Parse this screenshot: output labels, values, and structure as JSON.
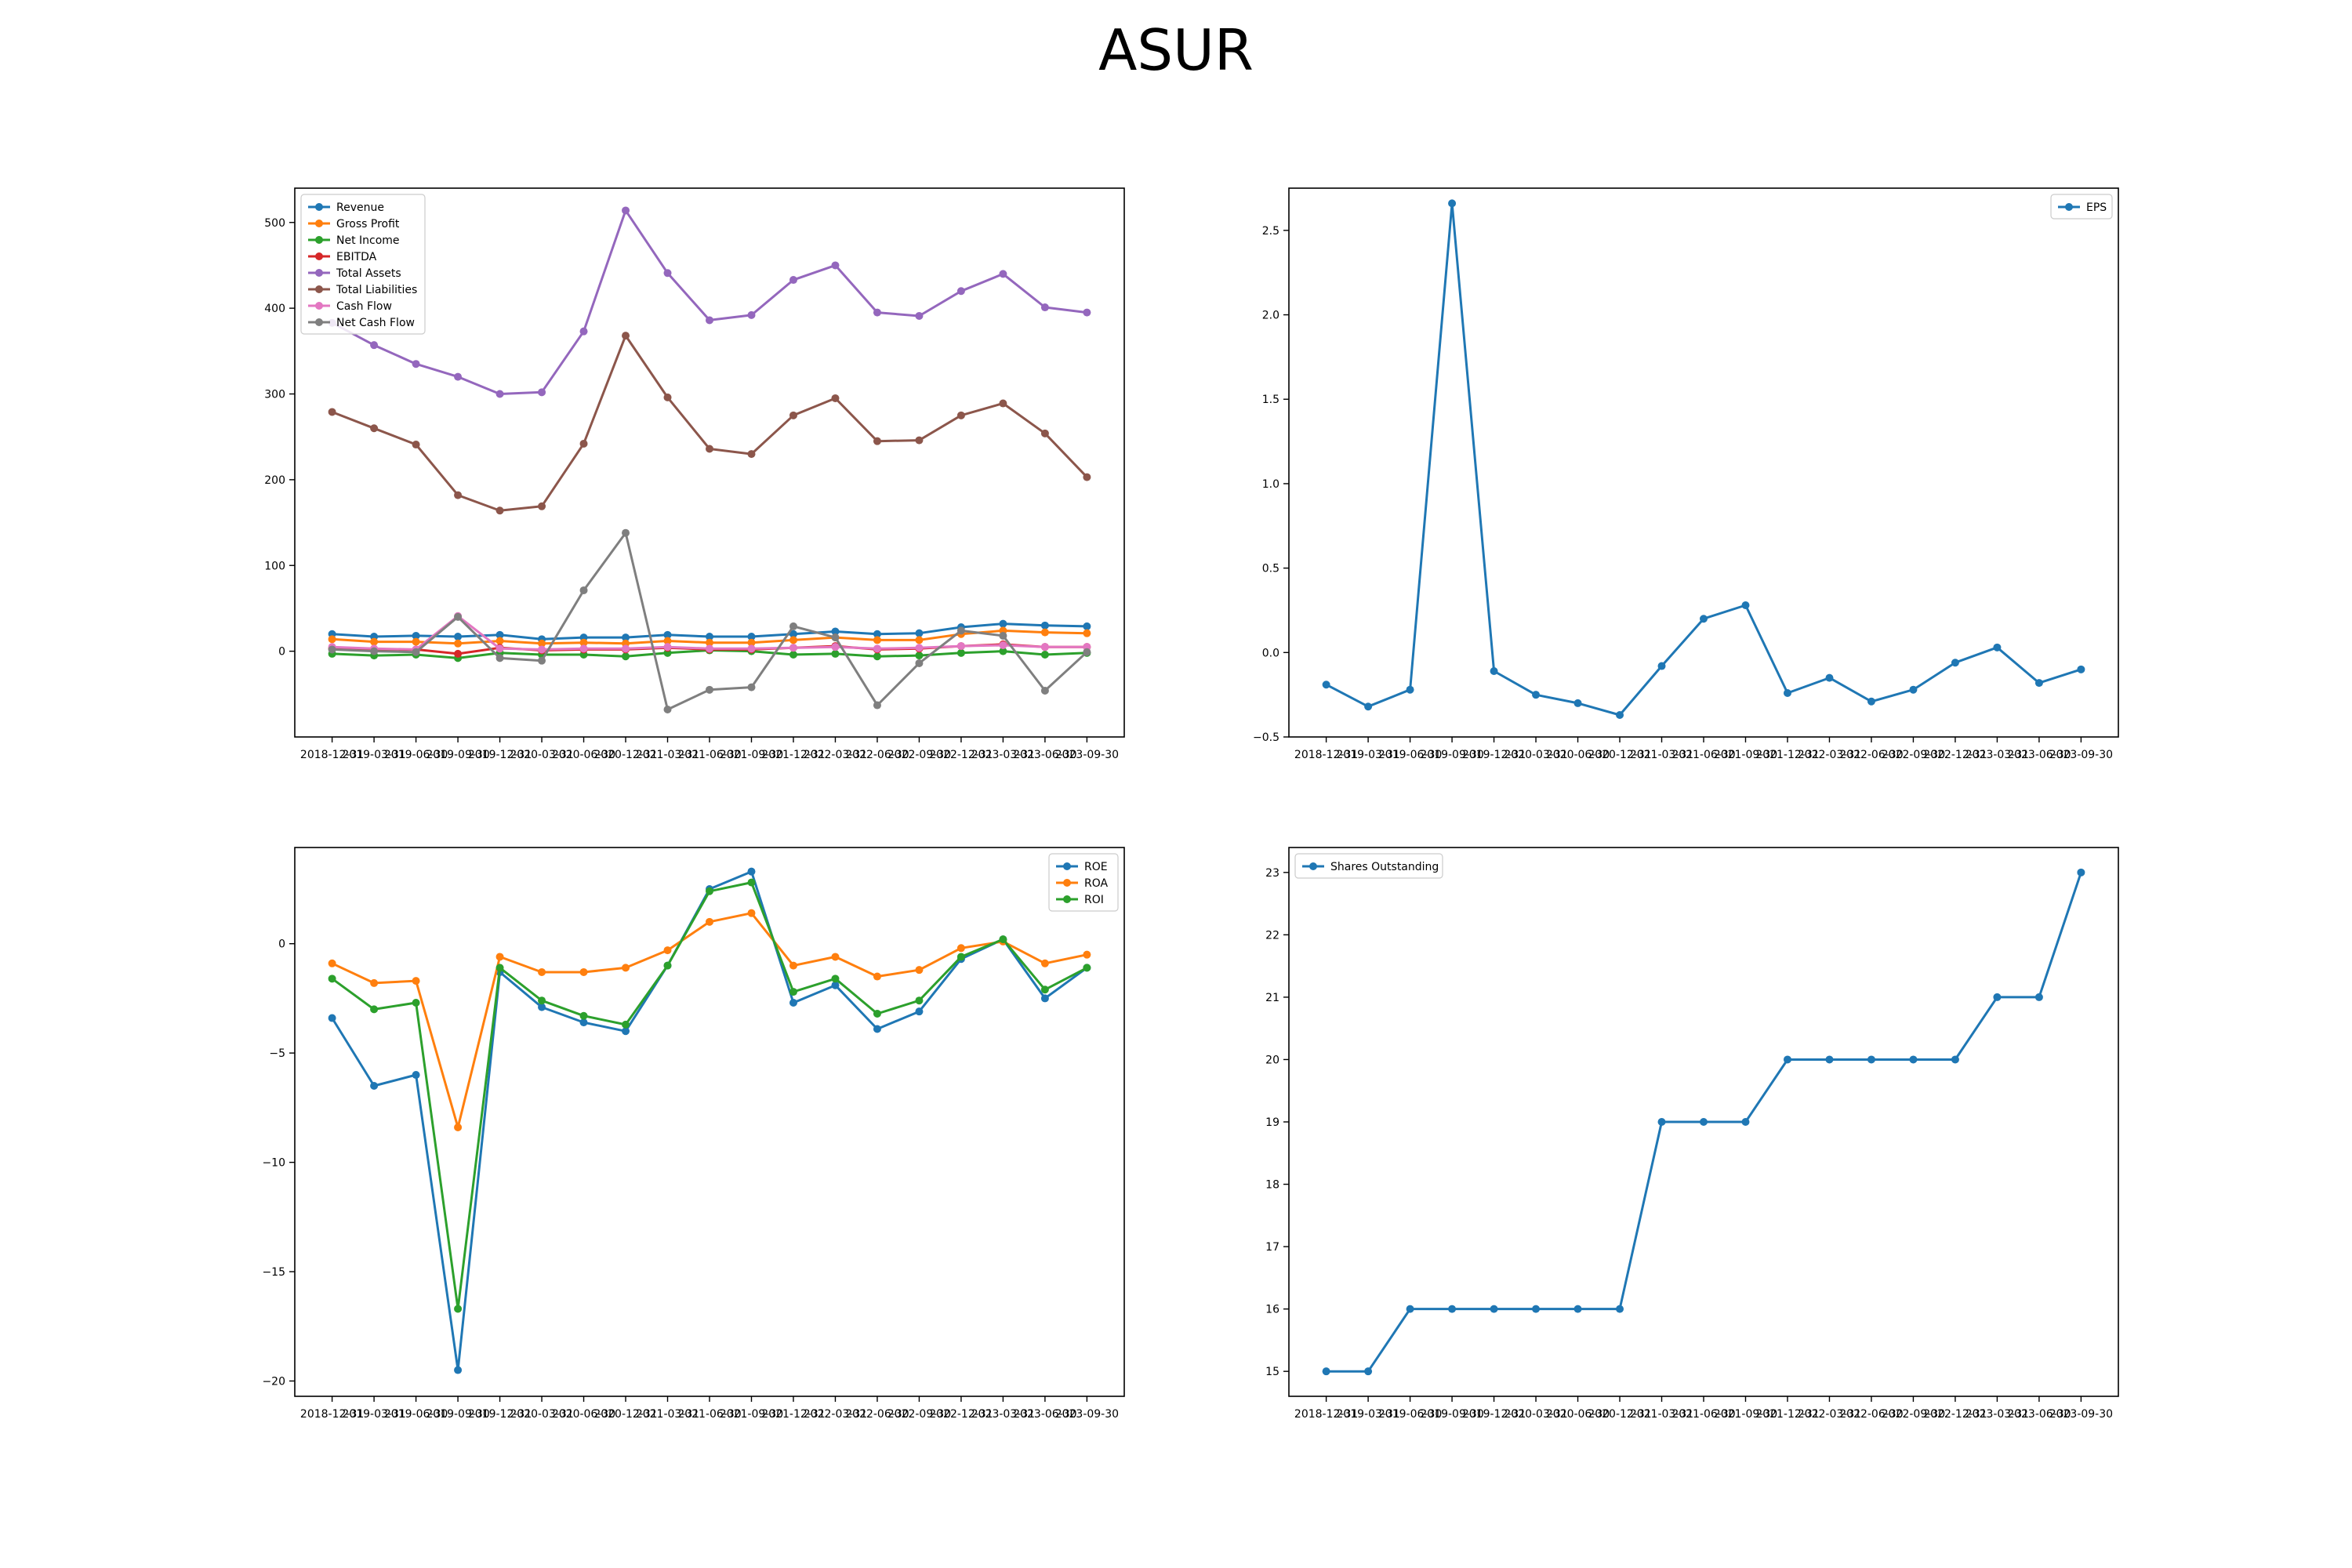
{
  "title": "ASUR",
  "chart_data": [
    {
      "type": "line",
      "legend_position": "upper-left",
      "x": [
        "2018-12-31",
        "2019-03-31",
        "2019-06-30",
        "2019-09-30",
        "2019-12-31",
        "2020-03-31",
        "2020-06-30",
        "2020-12-31",
        "2021-03-31",
        "2021-06-30",
        "2021-09-30",
        "2021-12-31",
        "2022-03-31",
        "2022-06-30",
        "2022-09-30",
        "2022-12-31",
        "2023-03-31",
        "2023-06-30",
        "2023-09-30"
      ],
      "ylim": [
        -100,
        540
      ],
      "yticks": [
        0,
        100,
        200,
        300,
        400,
        500
      ],
      "series": [
        {
          "name": "Revenue",
          "color": "#1f77b4",
          "values": [
            20,
            17,
            18,
            17,
            19,
            14,
            16,
            16,
            19,
            17,
            17,
            20,
            23,
            20,
            21,
            28,
            32,
            30,
            29
          ]
        },
        {
          "name": "Gross Profit",
          "color": "#ff7f0e",
          "values": [
            14,
            11,
            11,
            9,
            12,
            9,
            10,
            9,
            12,
            10,
            10,
            13,
            16,
            13,
            13,
            20,
            24,
            22,
            21
          ]
        },
        {
          "name": "Net Income",
          "color": "#2ca02c",
          "values": [
            -3,
            -5,
            -4,
            -8,
            -2,
            -4,
            -4,
            -6,
            -2,
            1,
            0,
            -4,
            -3,
            -6,
            -5,
            -2,
            0,
            -4,
            -2
          ]
        },
        {
          "name": "EBITDA",
          "color": "#d62728",
          "values": [
            3,
            1,
            2,
            -3,
            4,
            1,
            2,
            2,
            4,
            2,
            2,
            4,
            6,
            2,
            3,
            6,
            8,
            5,
            5
          ]
        },
        {
          "name": "Total Assets",
          "color": "#9467bd",
          "values": [
            383,
            357,
            335,
            320,
            300,
            302,
            373,
            514,
            441,
            386,
            392,
            433,
            450,
            395,
            391,
            420,
            440,
            401,
            395
          ]
        },
        {
          "name": "Total Liabilities",
          "color": "#8c564b",
          "values": [
            279,
            260,
            241,
            182,
            164,
            169,
            242,
            368,
            296,
            236,
            230,
            275,
            295,
            245,
            246,
            275,
            289,
            254,
            203
          ]
        },
        {
          "name": "Cash Flow",
          "color": "#e377c2",
          "values": [
            5,
            3,
            2,
            41,
            3,
            2,
            3,
            3,
            5,
            3,
            3,
            4,
            5,
            3,
            4,
            6,
            7,
            5,
            5
          ]
        },
        {
          "name": "Net Cash Flow",
          "color": "#7f7f7f",
          "values": [
            2,
            0,
            -1,
            40,
            -8,
            -11,
            71,
            138,
            -68,
            -45,
            -42,
            29,
            16,
            -63,
            -14,
            24,
            18,
            -46,
            -1
          ]
        }
      ]
    },
    {
      "type": "line",
      "legend_position": "upper-right",
      "x": [
        "2018-12-31",
        "2019-03-31",
        "2019-06-30",
        "2019-09-30",
        "2019-12-31",
        "2020-03-31",
        "2020-06-30",
        "2020-12-31",
        "2021-03-31",
        "2021-06-30",
        "2021-09-30",
        "2021-12-31",
        "2022-03-31",
        "2022-06-30",
        "2022-09-30",
        "2022-12-31",
        "2023-03-31",
        "2023-06-30",
        "2023-09-30"
      ],
      "ylim": [
        -0.5,
        2.75
      ],
      "yticks": [
        -0.5,
        0.0,
        0.5,
        1.0,
        1.5,
        2.0,
        2.5
      ],
      "series": [
        {
          "name": "EPS",
          "color": "#1f77b4",
          "values": [
            -0.19,
            -0.32,
            -0.22,
            2.66,
            -0.11,
            -0.25,
            -0.3,
            -0.37,
            -0.08,
            0.2,
            0.28,
            -0.24,
            -0.15,
            -0.29,
            -0.22,
            -0.06,
            0.03,
            -0.18,
            -0.1
          ]
        }
      ]
    },
    {
      "type": "line",
      "legend_position": "upper-right",
      "x": [
        "2018-12-31",
        "2019-03-31",
        "2019-06-30",
        "2019-09-30",
        "2019-12-31",
        "2020-03-31",
        "2020-06-30",
        "2020-12-31",
        "2021-03-31",
        "2021-06-30",
        "2021-09-30",
        "2021-12-31",
        "2022-03-31",
        "2022-06-30",
        "2022-09-30",
        "2022-12-31",
        "2023-03-31",
        "2023-06-30",
        "2023-09-30"
      ],
      "ylim": [
        -20.7,
        4.4
      ],
      "yticks": [
        -20,
        -15,
        -10,
        -5,
        0
      ],
      "series": [
        {
          "name": "ROE",
          "color": "#1f77b4",
          "values": [
            -3.4,
            -6.5,
            -6.0,
            -19.5,
            -1.3,
            -2.9,
            -3.6,
            -4.0,
            -1.0,
            2.5,
            3.3,
            -2.7,
            -1.9,
            -3.9,
            -3.1,
            -0.7,
            0.2,
            -2.5,
            -1.1
          ]
        },
        {
          "name": "ROA",
          "color": "#ff7f0e",
          "values": [
            -0.9,
            -1.8,
            -1.7,
            -8.4,
            -0.6,
            -1.3,
            -1.3,
            -1.1,
            -0.3,
            1.0,
            1.4,
            -1.0,
            -0.6,
            -1.5,
            -1.2,
            -0.2,
            0.1,
            -0.9,
            -0.5
          ]
        },
        {
          "name": "ROI",
          "color": "#2ca02c",
          "values": [
            -1.6,
            -3.0,
            -2.7,
            -16.7,
            -1.1,
            -2.6,
            -3.3,
            -3.7,
            -1.0,
            2.4,
            2.8,
            -2.2,
            -1.6,
            -3.2,
            -2.6,
            -0.6,
            0.2,
            -2.1,
            -1.1
          ]
        }
      ]
    },
    {
      "type": "line",
      "legend_position": "upper-left",
      "x": [
        "2018-12-31",
        "2019-03-31",
        "2019-06-30",
        "2019-09-30",
        "2019-12-31",
        "2020-03-31",
        "2020-06-30",
        "2020-12-31",
        "2021-03-31",
        "2021-06-30",
        "2021-09-30",
        "2021-12-31",
        "2022-03-31",
        "2022-06-30",
        "2022-09-30",
        "2022-12-31",
        "2023-03-31",
        "2023-06-30",
        "2023-09-30"
      ],
      "ylim": [
        14.6,
        23.4
      ],
      "yticks": [
        15,
        16,
        17,
        18,
        19,
        20,
        21,
        22,
        23
      ],
      "series": [
        {
          "name": "Shares Outstanding",
          "color": "#1f77b4",
          "values": [
            15,
            15,
            16,
            16,
            16,
            16,
            16,
            16,
            19,
            19,
            19,
            20,
            20,
            20,
            20,
            20,
            21,
            21,
            23
          ]
        }
      ]
    }
  ]
}
